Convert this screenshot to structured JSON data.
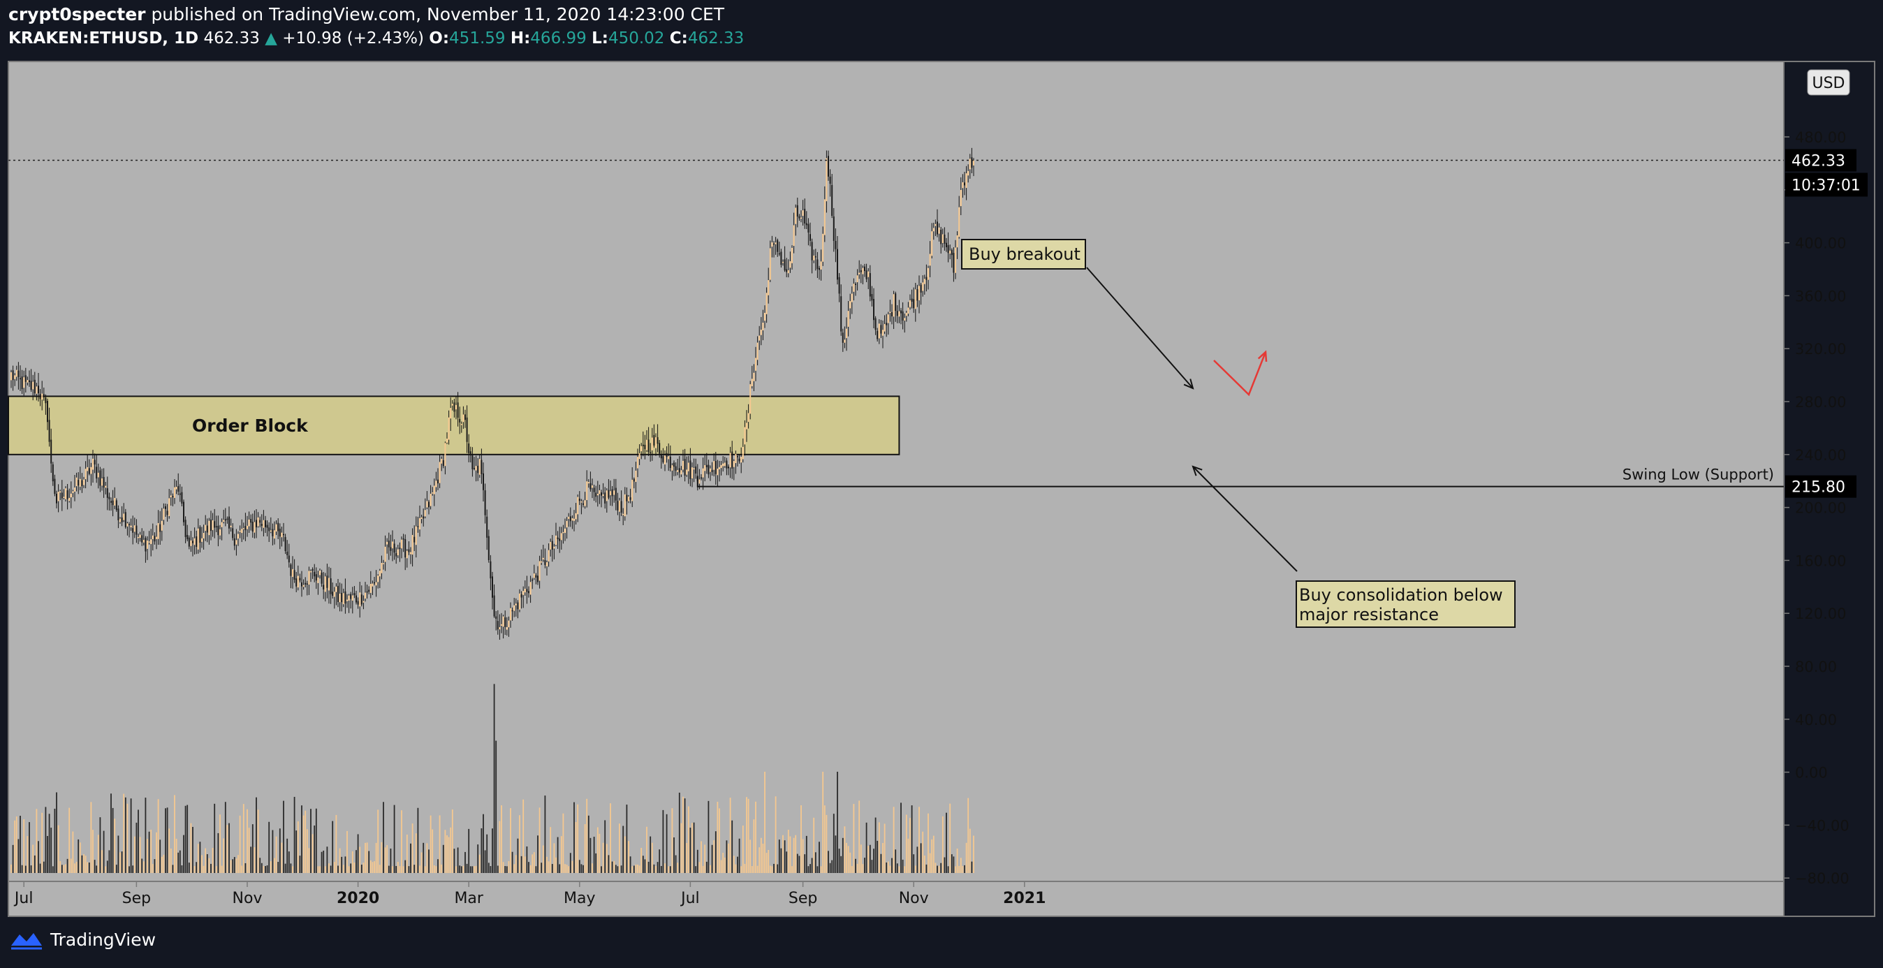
{
  "header": {
    "author": "crypt0specter",
    "published": "published on TradingView.com, November 11, 2020 14:23:00 CET",
    "symbol": "KRAKEN:ETHUSD, 1D",
    "last": "462.33",
    "change": "+10.98 (+2.43%)",
    "o_label": "O:",
    "o_value": "451.59",
    "h_label": "H:",
    "h_value": "466.99",
    "l_label": "L:",
    "l_value": "450.02",
    "c_label": "C:",
    "c_value": "462.33"
  },
  "currency": "USD",
  "price_label": "462.33",
  "countdown": "10:37:01",
  "support_label": "215.80",
  "swing_low_text": "Swing Low (Support)",
  "zone_label": "Order Block",
  "annotations": {
    "buy_breakout": "Buy breakout",
    "consolidation_line1": "Buy consolidation below",
    "consolidation_line2": "major resistance"
  },
  "footer": {
    "brand": "TradingView"
  },
  "colors": {
    "background": "#b2b2b2",
    "frame": "#131722",
    "zone": "#cfc88f",
    "candle_up": "#f5c890",
    "candle_down": "#1a1a1a",
    "annotation_bg": "#ddd8a6",
    "accent_red": "#e53935"
  },
  "chart_data": {
    "type": "candlestick",
    "symbol": "KRAKEN:ETHUSD",
    "interval": "1D",
    "ylim": [
      -80,
      520
    ],
    "y_ticks": [
      "480.00",
      "440.00",
      "400.00",
      "360.00",
      "320.00",
      "280.00",
      "240.00",
      "200.00",
      "160.00",
      "120.00",
      "80.00",
      "40.00",
      "0.00",
      "−40.00",
      "−80.00"
    ],
    "y_tick_values": [
      480,
      440,
      400,
      360,
      320,
      280,
      240,
      200,
      160,
      120,
      80,
      40,
      0,
      -40,
      -80
    ],
    "x_ticks": [
      "Jul",
      "Sep",
      "Nov",
      "2020",
      "Mar",
      "May",
      "Jul",
      "Sep",
      "Nov",
      "2021"
    ],
    "x_tick_days": [
      7,
      69,
      130,
      191,
      252,
      313,
      374,
      436,
      497,
      558
    ],
    "last_price": 462.33,
    "support": 215.8,
    "order_block": {
      "low": 240,
      "high": 284,
      "start_day": 0,
      "end_day": 489
    },
    "close_anchors": [
      [
        0,
        300
      ],
      [
        8,
        292
      ],
      [
        15,
        290
      ],
      [
        20,
        270
      ],
      [
        22,
        230
      ],
      [
        25,
        205
      ],
      [
        32,
        212
      ],
      [
        38,
        218
      ],
      [
        45,
        232
      ],
      [
        48,
        225
      ],
      [
        55,
        205
      ],
      [
        60,
        195
      ],
      [
        65,
        190
      ],
      [
        72,
        172
      ],
      [
        80,
        178
      ],
      [
        87,
        205
      ],
      [
        92,
        215
      ],
      [
        94,
        196
      ],
      [
        98,
        168
      ],
      [
        103,
        178
      ],
      [
        110,
        186
      ],
      [
        118,
        186
      ],
      [
        123,
        178
      ],
      [
        128,
        182
      ],
      [
        136,
        190
      ],
      [
        143,
        185
      ],
      [
        150,
        175
      ],
      [
        155,
        148
      ],
      [
        160,
        146
      ],
      [
        167,
        150
      ],
      [
        175,
        140
      ],
      [
        180,
        132
      ],
      [
        185,
        130
      ],
      [
        192,
        132
      ],
      [
        200,
        142
      ],
      [
        207,
        168
      ],
      [
        214,
        170
      ],
      [
        219,
        168
      ],
      [
        225,
        185
      ],
      [
        232,
        210
      ],
      [
        238,
        238
      ],
      [
        242,
        272
      ],
      [
        246,
        272
      ],
      [
        250,
        262
      ],
      [
        254,
        225
      ],
      [
        258,
        232
      ],
      [
        261,
        198
      ],
      [
        266,
        118
      ],
      [
        270,
        110
      ],
      [
        276,
        122
      ],
      [
        282,
        135
      ],
      [
        290,
        150
      ],
      [
        297,
        168
      ],
      [
        302,
        175
      ],
      [
        307,
        190
      ],
      [
        312,
        203
      ],
      [
        318,
        215
      ],
      [
        322,
        205
      ],
      [
        330,
        210
      ],
      [
        337,
        200
      ],
      [
        342,
        215
      ],
      [
        348,
        248
      ],
      [
        355,
        248
      ],
      [
        360,
        238
      ],
      [
        368,
        232
      ],
      [
        373,
        228
      ],
      [
        380,
        226
      ],
      [
        388,
        232
      ],
      [
        395,
        236
      ],
      [
        400,
        234
      ],
      [
        405,
        260
      ],
      [
        408,
        300
      ],
      [
        412,
        330
      ],
      [
        415,
        345
      ],
      [
        418,
        395
      ],
      [
        422,
        395
      ],
      [
        428,
        375
      ],
      [
        432,
        420
      ],
      [
        436,
        420
      ],
      [
        440,
        395
      ],
      [
        445,
        380
      ],
      [
        447,
        402
      ],
      [
        449,
        470
      ],
      [
        452,
        425
      ],
      [
        455,
        375
      ],
      [
        458,
        318
      ],
      [
        462,
        360
      ],
      [
        467,
        375
      ],
      [
        472,
        375
      ],
      [
        476,
        335
      ],
      [
        480,
        330
      ],
      [
        486,
        355
      ],
      [
        492,
        345
      ],
      [
        498,
        360
      ],
      [
        504,
        378
      ],
      [
        508,
        410
      ],
      [
        512,
        405
      ],
      [
        516,
        395
      ],
      [
        519,
        380
      ],
      [
        523,
        440
      ],
      [
        526,
        455
      ],
      [
        530,
        462.33
      ]
    ],
    "volume_ylim": [
      0,
      150
    ],
    "volume_series": "daily bars aligned with candles; spike on day 266"
  }
}
